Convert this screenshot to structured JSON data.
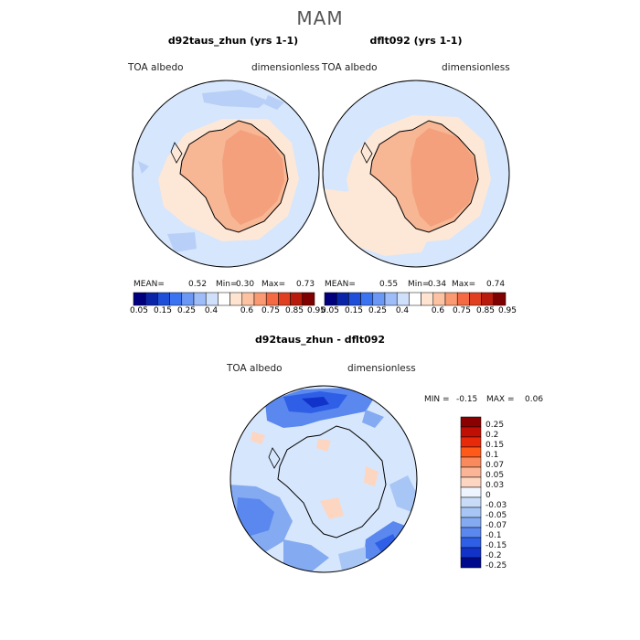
{
  "season": "MAM",
  "panels": [
    {
      "title": "d92taus_zhun (yrs 1-1)",
      "left_label": "TOA albedo",
      "right_label": "dimensionless",
      "mean_label": "MEAN=",
      "mean": "0.52",
      "min_label": "Min=",
      "min": "0.30",
      "max_label": "Max=",
      "max": "0.73"
    },
    {
      "title": "dflt092 (yrs 1-1)",
      "left_label": "TOA albedo",
      "right_label": "dimensionless",
      "mean_label": "MEAN=",
      "mean": "0.55",
      "min_label": "Min=",
      "min": "0.34",
      "max_label": "Max=",
      "max": "0.74"
    }
  ],
  "diff": {
    "title": "d92taus_zhun - dflt092",
    "left_label": "TOA albedo",
    "right_label": "dimensionless",
    "min_label": "MIN =",
    "min": "-0.15",
    "max_label": "MAX =",
    "max": "0.06"
  },
  "chart_data": [
    {
      "type": "heatmap",
      "projection": "south polar stereographic",
      "title": "d92taus_zhun (yrs 1-1)",
      "variable": "TOA albedo",
      "units": "dimensionless",
      "mean": 0.52,
      "min": 0.3,
      "max": 0.73,
      "colorbar_ticks": [
        "0.05",
        "0.15",
        "0.25",
        "0.4",
        "0.6",
        "0.75",
        "0.85",
        "0.95"
      ]
    },
    {
      "type": "heatmap",
      "projection": "south polar stereographic",
      "title": "dflt092 (yrs 1-1)",
      "variable": "TOA albedo",
      "units": "dimensionless",
      "mean": 0.55,
      "min": 0.34,
      "max": 0.74,
      "colorbar_ticks": [
        "0.05",
        "0.15",
        "0.25",
        "0.4",
        "0.6",
        "0.75",
        "0.85",
        "0.95"
      ]
    },
    {
      "type": "heatmap",
      "projection": "south polar stereographic",
      "title": "d92taus_zhun - dflt092",
      "variable": "TOA albedo",
      "units": "dimensionless",
      "min": -0.15,
      "max": 0.06,
      "colorbar_levels": [
        "0.25",
        "0.2",
        "0.15",
        "0.1",
        "0.07",
        "0.05",
        "0.03",
        "0",
        "-0.03",
        "-0.05",
        "-0.07",
        "-0.1",
        "-0.15",
        "-0.2",
        "-0.25"
      ]
    }
  ],
  "colors": {
    "abs_scale": [
      "#00007f",
      "#0a24a8",
      "#1f4fd8",
      "#3b74f0",
      "#6b98f5",
      "#9ebcf8",
      "#cfe0fb",
      "#ffffff",
      "#fde3d0",
      "#fcc2a2",
      "#f99a72",
      "#f46a43",
      "#e0401f",
      "#b81a0c",
      "#7f0000"
    ],
    "diff_scale": [
      "#8b0000",
      "#c01005",
      "#e82a0a",
      "#ff5a1a",
      "#f98a5e",
      "#fbb596",
      "#fdd6c2",
      "#eef5ff",
      "#c8dcf8",
      "#a8c6f5",
      "#84aaf2",
      "#5a88ee",
      "#2f5fe6",
      "#1233c9",
      "#000a8c"
    ]
  }
}
